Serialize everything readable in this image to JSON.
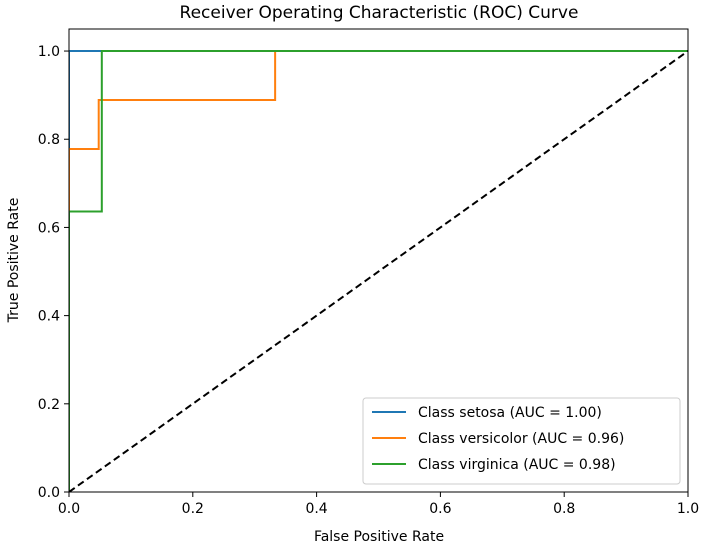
{
  "chart_data": {
    "type": "line",
    "title": "Receiver Operating Characteristic (ROC) Curve",
    "xlabel": "False Positive Rate",
    "ylabel": "True Positive Rate",
    "xlim": [
      0.0,
      1.0
    ],
    "ylim": [
      0.0,
      1.05
    ],
    "xticks": [
      "0.0",
      "0.2",
      "0.4",
      "0.6",
      "0.8",
      "1.0"
    ],
    "yticks": [
      "0.0",
      "0.2",
      "0.4",
      "0.6",
      "0.8",
      "1.0"
    ],
    "grid": false,
    "legend_position": "lower-right",
    "series": [
      {
        "name": "Class setosa (AUC = 1.00)",
        "color": "#1f77b4",
        "x": [
          0.0,
          0.0,
          0.053,
          1.0
        ],
        "y": [
          0.0,
          1.0,
          1.0,
          1.0
        ]
      },
      {
        "name": "Class versicolor (AUC = 0.96)",
        "color": "#ff7f0e",
        "x": [
          0.0,
          0.0,
          0.048,
          0.048,
          0.333,
          0.333,
          1.0
        ],
        "y": [
          0.0,
          0.778,
          0.778,
          0.889,
          0.889,
          1.0,
          1.0
        ]
      },
      {
        "name": "Class virginica (AUC = 0.98)",
        "color": "#2ca02c",
        "x": [
          0.0,
          0.0,
          0.053,
          0.053,
          1.0
        ],
        "y": [
          0.0,
          0.636,
          0.636,
          1.0,
          1.0
        ]
      }
    ],
    "reference_line": {
      "x": [
        0.0,
        1.0
      ],
      "y": [
        0.0,
        1.0
      ],
      "color": "#000000",
      "style": "dashed"
    }
  }
}
